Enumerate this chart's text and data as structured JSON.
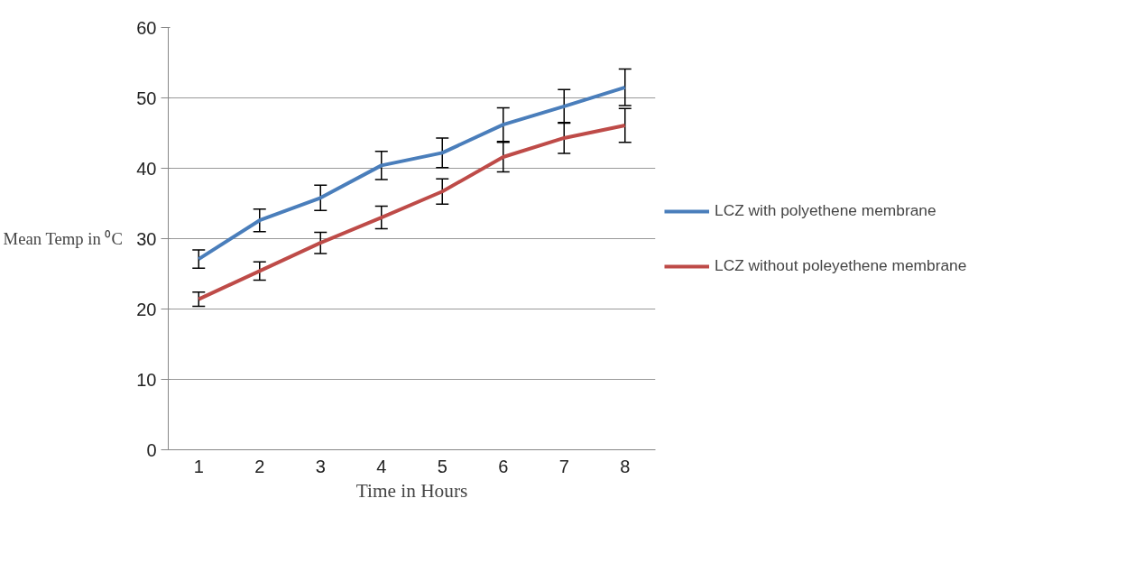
{
  "chart_data": {
    "type": "line",
    "xlabel": "Time in Hours",
    "ylabel": "Mean Temp in ⁰C",
    "categories": [
      "1",
      "2",
      "3",
      "4",
      "5",
      "6",
      "7",
      "8"
    ],
    "series": [
      {
        "name": "LCZ with polyethene membrane",
        "color": "#4a7ebb",
        "values": [
          27.1,
          32.6,
          35.8,
          40.4,
          42.2,
          46.2,
          48.8,
          51.5
        ],
        "errors": [
          1.3,
          1.6,
          1.8,
          2.0,
          2.1,
          2.4,
          2.4,
          2.6
        ]
      },
      {
        "name": "LCZ without poleyethene membrane",
        "color": "#be4b48",
        "values": [
          21.4,
          25.4,
          29.4,
          33.0,
          36.7,
          41.6,
          44.3,
          46.1
        ],
        "errors": [
          1.0,
          1.3,
          1.5,
          1.6,
          1.8,
          2.1,
          2.2,
          2.4
        ]
      }
    ],
    "ylim": [
      0,
      60
    ],
    "yticks": [
      0,
      10,
      20,
      30,
      40,
      50,
      60
    ],
    "grid": "y",
    "legend": "right",
    "marker": "none",
    "line_style": "solid"
  }
}
